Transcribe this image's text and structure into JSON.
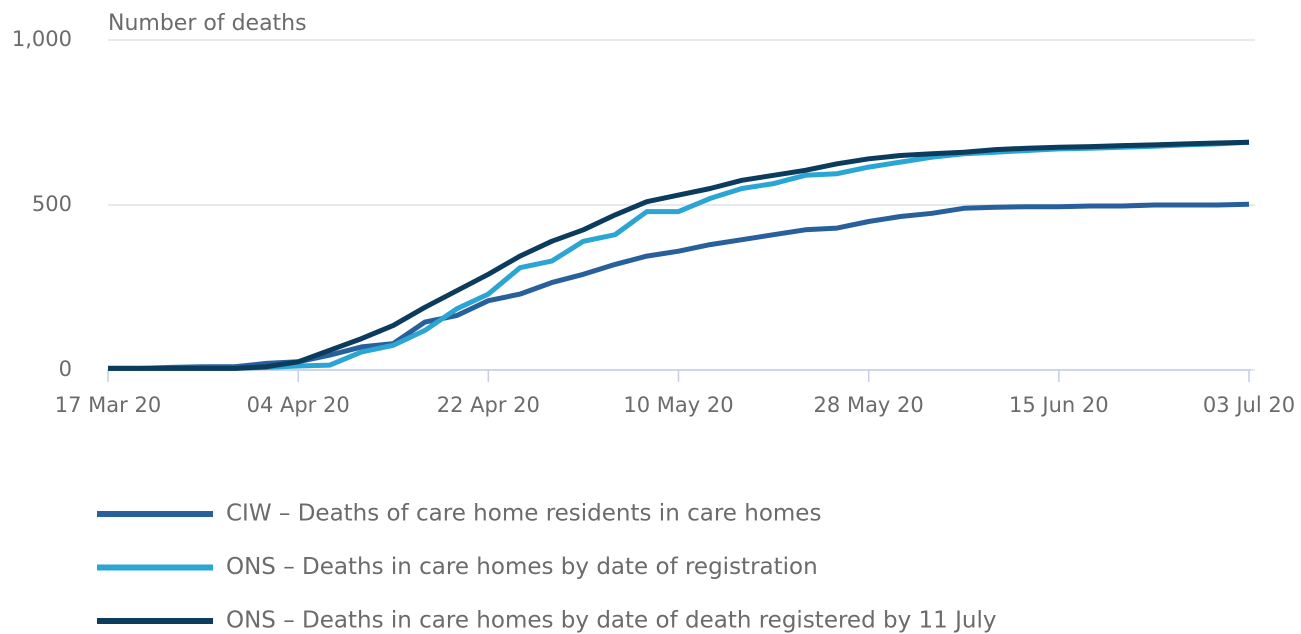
{
  "chart_data": {
    "type": "line",
    "y_axis_label": "Number of deaths",
    "x": [
      "2020-03-17",
      "2020-03-20",
      "2020-03-23",
      "2020-03-26",
      "2020-03-29",
      "2020-04-01",
      "2020-04-04",
      "2020-04-07",
      "2020-04-10",
      "2020-04-13",
      "2020-04-16",
      "2020-04-19",
      "2020-04-22",
      "2020-04-25",
      "2020-04-28",
      "2020-05-01",
      "2020-05-04",
      "2020-05-07",
      "2020-05-10",
      "2020-05-13",
      "2020-05-16",
      "2020-05-19",
      "2020-05-22",
      "2020-05-25",
      "2020-05-28",
      "2020-05-31",
      "2020-06-03",
      "2020-06-06",
      "2020-06-09",
      "2020-06-12",
      "2020-06-15",
      "2020-06-18",
      "2020-06-21",
      "2020-06-24",
      "2020-06-27",
      "2020-06-30",
      "2020-07-03"
    ],
    "series": [
      {
        "name": "CIW – Deaths of care home residents in care homes",
        "color": "#27609a",
        "values": [
          5,
          5,
          8,
          10,
          10,
          20,
          25,
          45,
          70,
          80,
          145,
          165,
          210,
          230,
          265,
          290,
          320,
          345,
          360,
          380,
          395,
          410,
          425,
          430,
          450,
          465,
          475,
          490,
          493,
          495,
          495,
          497,
          497,
          500,
          500,
          500,
          502
        ]
      },
      {
        "name": "ONS – Deaths in care homes by date of registration",
        "color": "#2aa5d4",
        "values": [
          5,
          5,
          5,
          5,
          5,
          8,
          12,
          15,
          55,
          75,
          120,
          185,
          230,
          310,
          330,
          390,
          410,
          480,
          480,
          520,
          550,
          565,
          590,
          595,
          615,
          630,
          645,
          655,
          660,
          665,
          670,
          672,
          675,
          678,
          682,
          685,
          690
        ]
      },
      {
        "name": "ONS – Deaths in care homes by date of death registered by 11 July",
        "color": "#0b3c5d",
        "values": [
          5,
          5,
          5,
          5,
          5,
          10,
          25,
          60,
          95,
          135,
          190,
          240,
          290,
          345,
          390,
          425,
          470,
          510,
          530,
          550,
          575,
          590,
          605,
          625,
          640,
          650,
          655,
          660,
          668,
          672,
          675,
          677,
          680,
          682,
          685,
          688,
          690
        ]
      }
    ],
    "xlim": [
      "2020-03-17",
      "2020-07-03"
    ],
    "xticks": [
      {
        "value": "2020-03-17",
        "label": "17 Mar 20"
      },
      {
        "value": "2020-04-04",
        "label": "04 Apr 20"
      },
      {
        "value": "2020-04-22",
        "label": "22 Apr 20"
      },
      {
        "value": "2020-05-10",
        "label": "10 May 20"
      },
      {
        "value": "2020-05-28",
        "label": "28 May 20"
      },
      {
        "value": "2020-06-15",
        "label": "15 Jun 20"
      },
      {
        "value": "2020-07-03",
        "label": "03 Jul 20"
      }
    ],
    "ylim": [
      0,
      1000
    ],
    "yticks": [
      0,
      500,
      {
        "value": 1000,
        "label": "1,000"
      }
    ],
    "grid": true
  }
}
